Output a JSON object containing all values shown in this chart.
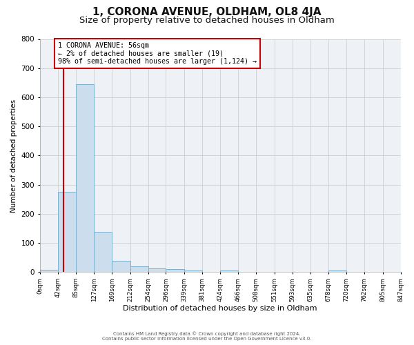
{
  "title": "1, CORONA AVENUE, OLDHAM, OL8 4JA",
  "subtitle": "Size of property relative to detached houses in Oldham",
  "xlabel": "Distribution of detached houses by size in Oldham",
  "ylabel": "Number of detached properties",
  "bin_edges": [
    0,
    42,
    85,
    127,
    169,
    212,
    254,
    296,
    339,
    381,
    424,
    466,
    508,
    551,
    593,
    635,
    678,
    720,
    762,
    805,
    847
  ],
  "counts": [
    8,
    275,
    645,
    138,
    38,
    20,
    12,
    10,
    5,
    0,
    6,
    0,
    0,
    0,
    0,
    0,
    5,
    0,
    0,
    0
  ],
  "bar_facecolor": "#ccdded",
  "bar_edgecolor": "#7ab0cc",
  "property_value": 56,
  "vline_color": "#cc0000",
  "annotation_box_edgecolor": "#cc0000",
  "annotation_text_line1": "1 CORONA AVENUE: 56sqm",
  "annotation_text_line2": "← 2% of detached houses are smaller (19)",
  "annotation_text_line3": "98% of semi-detached houses are larger (1,124) →",
  "ylim": [
    0,
    800
  ],
  "yticks": [
    0,
    100,
    200,
    300,
    400,
    500,
    600,
    700,
    800
  ],
  "footer_line1": "Contains HM Land Registry data © Crown copyright and database right 2024.",
  "footer_line2": "Contains public sector information licensed under the Open Government Licence v3.0.",
  "background_color": "#ffffff",
  "plot_background_color": "#eef2f7",
  "grid_color": "#c8c8c8",
  "title_fontsize": 11,
  "subtitle_fontsize": 9.5
}
